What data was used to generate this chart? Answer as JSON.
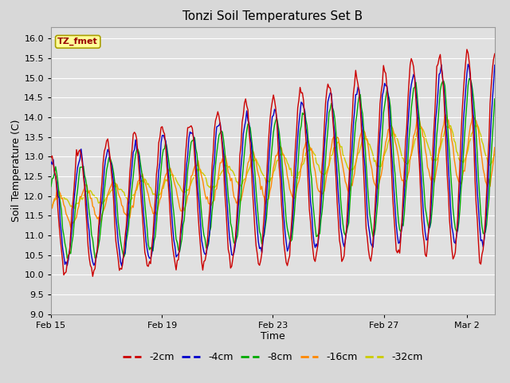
{
  "title": "Tonzi Soil Temperatures Set B",
  "xlabel": "Time",
  "ylabel": "Soil Temperature (C)",
  "ylim": [
    9.0,
    16.3
  ],
  "yticks": [
    9.0,
    9.5,
    10.0,
    10.5,
    11.0,
    11.5,
    12.0,
    12.5,
    13.0,
    13.5,
    14.0,
    14.5,
    15.0,
    15.5,
    16.0
  ],
  "bg_color": "#d8d8d8",
  "plot_bg_color": "#e0e0e0",
  "annotation_text": "TZ_fmet",
  "annotation_bg": "#ffff99",
  "annotation_border": "#aaa000",
  "annotation_text_color": "#990000",
  "series_colors": {
    "-2cm": "#cc0000",
    "-4cm": "#0000cc",
    "-8cm": "#00aa00",
    "-16cm": "#ff8800",
    "-32cm": "#cccc00"
  },
  "legend_labels": [
    "-2cm",
    "-4cm",
    "-8cm",
    "-16cm",
    "-32cm"
  ],
  "legend_colors": [
    "#cc0000",
    "#0000cc",
    "#00aa00",
    "#ff8800",
    "#cccc00"
  ],
  "n_days": 16,
  "pts_per_day": 24,
  "xtick_days": [
    0,
    4,
    8,
    12,
    15
  ],
  "xtick_labels": [
    "Feb 15",
    "Feb 19",
    "Feb 23",
    "Feb 27",
    "Mar 2"
  ]
}
